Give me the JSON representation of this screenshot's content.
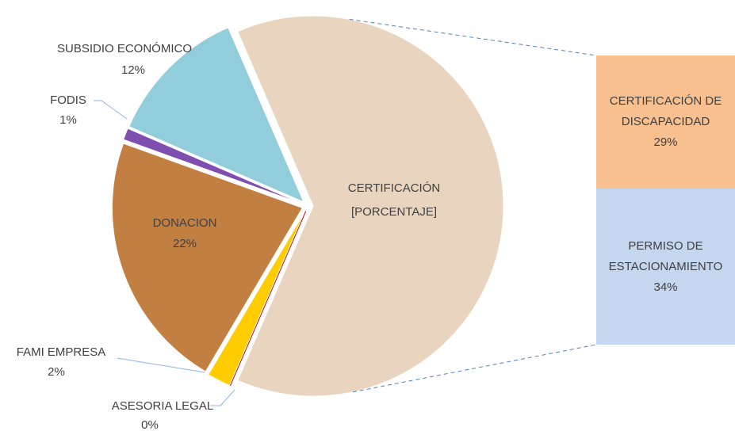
{
  "chart_data": {
    "type": "pie-of-bar",
    "categories": [
      "CERTIFICACIÓN",
      "ASESORIA LEGAL",
      "FAMI EMPRESA",
      "DONACION",
      "FODIS",
      "SUBSIDIO ECONÓMICO"
    ],
    "values": [
      63,
      0,
      2,
      22,
      1,
      12
    ],
    "value_labels": [
      "[PORCENTAJE]",
      "0%",
      "2%",
      "22%",
      "1%",
      "12%"
    ],
    "colors": [
      "#e9d5bf",
      "#c0000a",
      "#ffcc00",
      "#c27f42",
      "#7f4fb0",
      "#92cddc"
    ],
    "bar": {
      "categories": [
        "CERTIFICACIÓN DE DISCAPACIDAD",
        "PERMISO DE ESTACIONAMIENTO"
      ],
      "values": [
        29,
        34
      ],
      "value_labels": [
        "29%",
        "34%"
      ],
      "colors": [
        "#f8c08f",
        "#c5d6ef"
      ]
    }
  }
}
